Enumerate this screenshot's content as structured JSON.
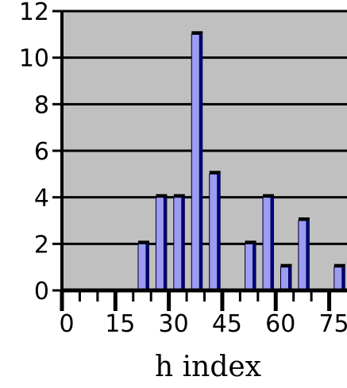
{
  "chart_data": {
    "type": "bar",
    "title": "",
    "xlabel": "h index",
    "ylabel": "",
    "ylim": [
      0,
      12
    ],
    "xlim": [
      0,
      80
    ],
    "grid": true,
    "x": [
      22.5,
      27.5,
      32.5,
      37.5,
      42.5,
      52.5,
      57.5,
      62.5,
      67.5,
      77.5
    ],
    "values": [
      2,
      4,
      4,
      11,
      5,
      2,
      4,
      1,
      3,
      1
    ],
    "yticks": [
      "0",
      "2",
      "4",
      "6",
      "8",
      "10",
      "12"
    ],
    "xticks": [
      "0",
      "15",
      "30",
      "45",
      "60",
      "75"
    ],
    "colors": {
      "plot_background": "#c0c0c0",
      "bar_face": "#9c9cf2",
      "bar_side": "#000080",
      "gridline": "#000000"
    }
  }
}
